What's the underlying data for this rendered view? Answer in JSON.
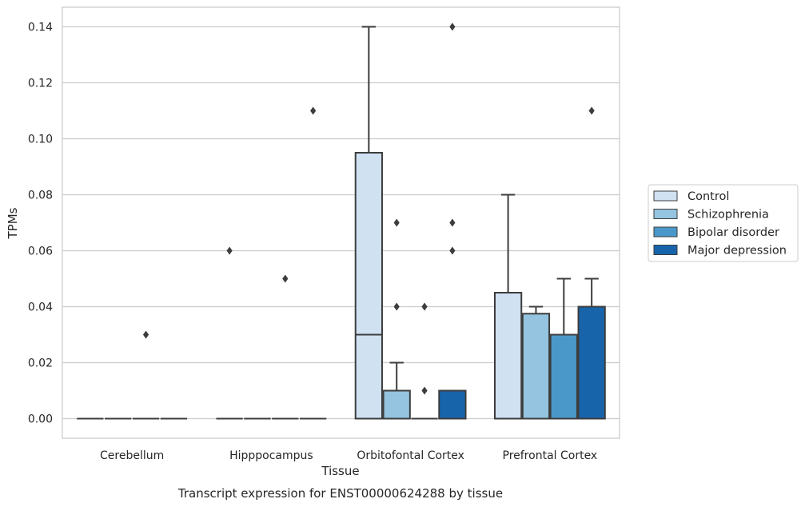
{
  "chart_data": {
    "type": "box",
    "caption": "Transcript expression for ENST00000624288 by tissue",
    "xlabel": "Tissue",
    "ylabel": "TPMs",
    "ylim": [
      -0.007,
      0.147
    ],
    "y_ticks": [
      "0.00",
      "0.02",
      "0.04",
      "0.06",
      "0.08",
      "0.10",
      "0.12",
      "0.14"
    ],
    "grid": "horizontal",
    "legend_position": "right",
    "categories": [
      "Cerebellum",
      "Hipppocampus",
      "Orbitofontal Cortex",
      "Prefrontal Cortex"
    ],
    "series": [
      {
        "name": "Control",
        "color": "#d0e1f2",
        "boxes": [
          {
            "q1": 0,
            "median": 0,
            "q3": 0,
            "whisker_low": 0,
            "whisker_high": 0,
            "outliers": []
          },
          {
            "q1": 0,
            "median": 0,
            "q3": 0,
            "whisker_low": 0,
            "whisker_high": 0,
            "outliers": [
              0.06
            ]
          },
          {
            "q1": 0,
            "median": 0.03,
            "q3": 0.095,
            "whisker_low": 0,
            "whisker_high": 0.14,
            "outliers": []
          },
          {
            "q1": 0,
            "median": 0,
            "q3": 0.045,
            "whisker_low": 0,
            "whisker_high": 0.08,
            "outliers": []
          }
        ]
      },
      {
        "name": "Schizophrenia",
        "color": "#94c4df",
        "boxes": [
          {
            "q1": 0,
            "median": 0,
            "q3": 0,
            "whisker_low": 0,
            "whisker_high": 0,
            "outliers": []
          },
          {
            "q1": 0,
            "median": 0,
            "q3": 0,
            "whisker_low": 0,
            "whisker_high": 0,
            "outliers": []
          },
          {
            "q1": 0,
            "median": 0,
            "q3": 0.01,
            "whisker_low": 0,
            "whisker_high": 0.02,
            "outliers": [
              0.04,
              0.07
            ]
          },
          {
            "q1": 0,
            "median": 0,
            "q3": 0.0375,
            "whisker_low": 0,
            "whisker_high": 0.04,
            "outliers": []
          }
        ]
      },
      {
        "name": "Bipolar disorder",
        "color": "#4a98c9",
        "boxes": [
          {
            "q1": 0,
            "median": 0,
            "q3": 0,
            "whisker_low": 0,
            "whisker_high": 0,
            "outliers": [
              0.03
            ]
          },
          {
            "q1": 0,
            "median": 0,
            "q3": 0,
            "whisker_low": 0,
            "whisker_high": 0,
            "outliers": [
              0.05
            ]
          },
          {
            "q1": 0,
            "median": 0,
            "q3": 0,
            "whisker_low": 0,
            "whisker_high": 0,
            "outliers": [
              0.01,
              0.04
            ]
          },
          {
            "q1": 0,
            "median": 0,
            "q3": 0.03,
            "whisker_low": 0,
            "whisker_high": 0.05,
            "outliers": []
          }
        ]
      },
      {
        "name": "Major depression",
        "color": "#1764ab",
        "boxes": [
          {
            "q1": 0,
            "median": 0,
            "q3": 0,
            "whisker_low": 0,
            "whisker_high": 0,
            "outliers": []
          },
          {
            "q1": 0,
            "median": 0,
            "q3": 0,
            "whisker_low": 0,
            "whisker_high": 0,
            "outliers": [
              0.11
            ]
          },
          {
            "q1": 0,
            "median": 0,
            "q3": 0.01,
            "whisker_low": 0,
            "whisker_high": 0.01,
            "outliers": [
              0.06,
              0.07,
              0.14
            ]
          },
          {
            "q1": 0,
            "median": 0,
            "q3": 0.04,
            "whisker_low": 0,
            "whisker_high": 0.05,
            "outliers": [
              0.11
            ]
          }
        ]
      }
    ]
  }
}
